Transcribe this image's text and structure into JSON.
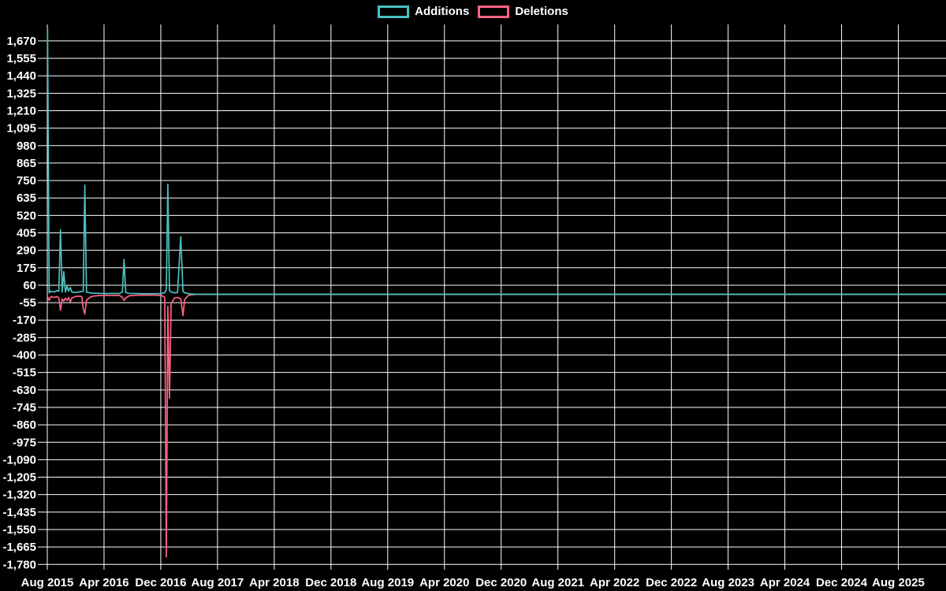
{
  "chart_data": {
    "type": "line",
    "title": "",
    "background_color": "#000000",
    "grid": true,
    "grid_color": "#ffffff",
    "text_color": "#ffffff",
    "legend_position": "top",
    "legend": [
      {
        "label": "Additions",
        "color": "#4bc0c0"
      },
      {
        "label": "Deletions",
        "color": "#ff6384"
      }
    ],
    "x_axis": {
      "start_month": "2015-08",
      "tick_step_months": 8,
      "tick_labels": [
        "Aug 2015",
        "Apr 2016",
        "Dec 2016",
        "Aug 2017",
        "Apr 2018",
        "Dec 2018",
        "Aug 2019",
        "Apr 2020",
        "Dec 2020",
        "Aug 2021",
        "Apr 2022",
        "Dec 2022",
        "Aug 2023",
        "Apr 2024",
        "Dec 2024",
        "Aug 2025"
      ]
    },
    "y_axis": {
      "tick_values": [
        1670,
        1555,
        1440,
        1325,
        1210,
        1095,
        980,
        865,
        750,
        635,
        520,
        405,
        290,
        175,
        60,
        -55,
        -170,
        -285,
        -400,
        -515,
        -630,
        -745,
        -860,
        -975,
        -1090,
        -1205,
        -1320,
        -1435,
        -1550,
        -1665,
        -1780
      ],
      "tick_labels": [
        "1,670",
        "1,555",
        "1,440",
        "1,325",
        "1,210",
        "1,095",
        "980",
        "865",
        "750",
        "635",
        "520",
        "405",
        "290",
        "175",
        "60",
        "-55",
        "-170",
        "-285",
        "-400",
        "-515",
        "-630",
        "-745",
        "-860",
        "-975",
        "-1,090",
        "-1,205",
        "-1,320",
        "-1,435",
        "-1,550",
        "-1,665",
        "-1,780"
      ],
      "ylim": [
        -1810,
        1780
      ]
    },
    "series": [
      {
        "name": "Additions",
        "color": "#4bc0c0",
        "points": [
          [
            "2015-08-02",
            1755
          ],
          [
            "2015-08-09",
            10
          ],
          [
            "2015-08-16",
            20
          ],
          [
            "2015-08-30",
            15
          ],
          [
            "2015-09-13",
            25
          ],
          [
            "2015-09-20",
            20
          ],
          [
            "2015-09-27",
            425
          ],
          [
            "2015-10-04",
            15
          ],
          [
            "2015-10-11",
            150
          ],
          [
            "2015-10-18",
            15
          ],
          [
            "2015-10-25",
            55
          ],
          [
            "2015-11-01",
            20
          ],
          [
            "2015-11-08",
            45
          ],
          [
            "2015-11-15",
            15
          ],
          [
            "2015-11-29",
            12
          ],
          [
            "2015-12-13",
            15
          ],
          [
            "2015-12-27",
            18
          ],
          [
            "2016-01-03",
            20
          ],
          [
            "2016-01-10",
            720
          ],
          [
            "2016-01-17",
            15
          ],
          [
            "2016-01-31",
            10
          ],
          [
            "2016-02-14",
            8
          ],
          [
            "2016-03-13",
            6
          ],
          [
            "2016-04-10",
            5
          ],
          [
            "2016-05-08",
            6
          ],
          [
            "2016-06-05",
            5
          ],
          [
            "2016-06-19",
            15
          ],
          [
            "2016-06-26",
            230
          ],
          [
            "2016-07-03",
            12
          ],
          [
            "2016-07-17",
            6
          ],
          [
            "2016-08-14",
            5
          ],
          [
            "2016-09-11",
            4
          ],
          [
            "2016-10-09",
            4
          ],
          [
            "2016-11-06",
            4
          ],
          [
            "2016-12-04",
            5
          ],
          [
            "2016-12-18",
            10
          ],
          [
            "2016-12-25",
            30
          ],
          [
            "2017-01-01",
            725
          ],
          [
            "2017-01-08",
            25
          ],
          [
            "2017-01-15",
            15
          ],
          [
            "2017-01-29",
            10
          ],
          [
            "2017-02-12",
            12
          ],
          [
            "2017-02-26",
            380
          ],
          [
            "2017-03-05",
            20
          ],
          [
            "2017-03-12",
            10
          ],
          [
            "2017-03-26",
            5
          ],
          [
            "2017-04-09",
            2
          ]
        ]
      },
      {
        "name": "Deletions",
        "color": "#ff6384",
        "points": [
          [
            "2015-08-02",
            -15
          ],
          [
            "2015-08-09",
            -40
          ],
          [
            "2015-08-16",
            -15
          ],
          [
            "2015-08-30",
            -20
          ],
          [
            "2015-09-13",
            -15
          ],
          [
            "2015-09-20",
            -25
          ],
          [
            "2015-09-27",
            -105
          ],
          [
            "2015-10-04",
            -30
          ],
          [
            "2015-10-11",
            -45
          ],
          [
            "2015-10-18",
            -25
          ],
          [
            "2015-10-25",
            -40
          ],
          [
            "2015-11-01",
            -20
          ],
          [
            "2015-11-08",
            -50
          ],
          [
            "2015-11-15",
            -25
          ],
          [
            "2015-11-29",
            -15
          ],
          [
            "2015-12-13",
            -12
          ],
          [
            "2015-12-27",
            -15
          ],
          [
            "2016-01-03",
            -95
          ],
          [
            "2016-01-10",
            -130
          ],
          [
            "2016-01-17",
            -40
          ],
          [
            "2016-01-31",
            -20
          ],
          [
            "2016-02-14",
            -12
          ],
          [
            "2016-03-13",
            -8
          ],
          [
            "2016-04-10",
            -6
          ],
          [
            "2016-05-08",
            -8
          ],
          [
            "2016-06-05",
            -6
          ],
          [
            "2016-06-19",
            -20
          ],
          [
            "2016-06-26",
            -40
          ],
          [
            "2016-07-03",
            -25
          ],
          [
            "2016-07-17",
            -10
          ],
          [
            "2016-08-14",
            -6
          ],
          [
            "2016-09-11",
            -5
          ],
          [
            "2016-10-09",
            -5
          ],
          [
            "2016-11-06",
            -5
          ],
          [
            "2016-12-04",
            -8
          ],
          [
            "2016-12-18",
            -20
          ],
          [
            "2016-12-25",
            -1730
          ],
          [
            "2017-01-01",
            -80
          ],
          [
            "2017-01-08",
            -685
          ],
          [
            "2017-01-15",
            -60
          ],
          [
            "2017-01-29",
            -25
          ],
          [
            "2017-02-12",
            -20
          ],
          [
            "2017-02-26",
            -30
          ],
          [
            "2017-03-05",
            -140
          ],
          [
            "2017-03-12",
            -35
          ],
          [
            "2017-03-26",
            -10
          ],
          [
            "2017-04-09",
            -3
          ]
        ]
      }
    ],
    "zero_tail": {
      "from": "2017-05-01",
      "to": "2026-03-01",
      "step_months": 1,
      "value": 0
    }
  }
}
